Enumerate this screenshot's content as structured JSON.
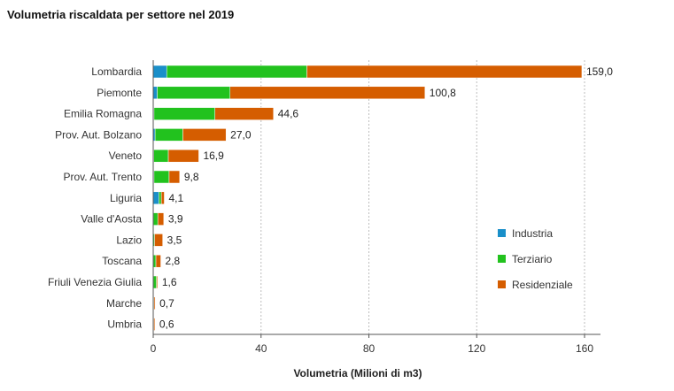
{
  "colors": {
    "industria": "#1a8fc9",
    "terziario": "#22c21e",
    "residenziale": "#d55d00",
    "grid": "#bdbdbd",
    "axis": "#555555"
  },
  "chart_data": {
    "type": "bar",
    "orientation": "horizontal",
    "stacked": true,
    "title": "Volumetria riscaldata per settore nel 2019",
    "xlabel": "Volumetria (Milioni di m3)",
    "ylabel": "",
    "xlim": [
      0,
      165
    ],
    "xticks": [
      0,
      40,
      80,
      120,
      160
    ],
    "grid": "vertical-dashed",
    "legend_position": "right",
    "categories": [
      "Lombardia",
      "Piemonte",
      "Emilia Romagna",
      "Prov. Aut. Bolzano",
      "Veneto",
      "Prov. Aut. Trento",
      "Liguria",
      "Valle d'Aosta",
      "Lazio",
      "Toscana",
      "Friuli Venezia Giulia",
      "Marche",
      "Umbria"
    ],
    "totals_labels": [
      "159,0",
      "100,8",
      "44,6",
      "27,0",
      "16,9",
      "9,8",
      "4,1",
      "3,9",
      "3,5",
      "2,8",
      "1,6",
      "0,7",
      "0,6"
    ],
    "series": [
      {
        "name": "Industria",
        "color_key": "industria",
        "values": [
          5.0,
          1.5,
          0.3,
          0.7,
          0.2,
          0.3,
          2.1,
          0.1,
          0.1,
          0.1,
          0.1,
          0.1,
          0.1
        ]
      },
      {
        "name": "Terziario",
        "color_key": "terziario",
        "values": [
          52.0,
          27.0,
          22.6,
          10.3,
          5.4,
          5.6,
          0.9,
          1.6,
          0.4,
          0.9,
          1.1,
          0.2,
          0.1
        ]
      },
      {
        "name": "Residenziale",
        "color_key": "residenziale",
        "values": [
          102.0,
          72.3,
          21.7,
          16.0,
          11.3,
          3.9,
          1.1,
          2.2,
          3.0,
          1.8,
          0.4,
          0.4,
          0.4
        ]
      }
    ]
  }
}
